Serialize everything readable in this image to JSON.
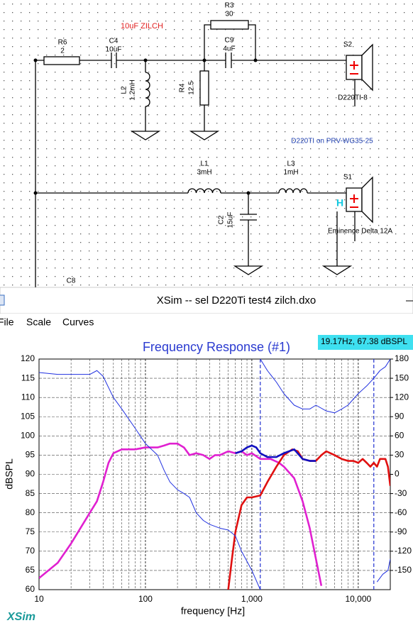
{
  "schematic": {
    "annotation": "10uF ZILCH",
    "components": [
      {
        "ref": "R6",
        "value": "2"
      },
      {
        "ref": "C4",
        "value": "10uF"
      },
      {
        "ref": "L2",
        "value": "1.2mH"
      },
      {
        "ref": "R4",
        "value": "12.5"
      },
      {
        "ref": "R3",
        "value": "30"
      },
      {
        "ref": "C9",
        "value": "4uF"
      },
      {
        "ref": "L1",
        "value": "3mH"
      },
      {
        "ref": "L3",
        "value": "1mH"
      },
      {
        "ref": "C2",
        "value": "15uF"
      },
      {
        "ref": "C8"
      }
    ],
    "speakers": [
      {
        "ref": "S2",
        "model": "D220TI-8"
      },
      {
        "ref": "S1",
        "model": "Eminence Delta 12A",
        "marker": "H"
      }
    ],
    "note": "D220TI on PRV-WG35-25"
  },
  "window": {
    "title": "XSim -- sel D220Ti test4 zilch.dxo",
    "menu": [
      "File",
      "Scale",
      "Curves"
    ],
    "cursor_readout": "19.17Hz, 67.38 dBSPL",
    "brand": "XSim"
  },
  "chart_data": {
    "type": "line",
    "title": "Frequency Response (#1)",
    "x_label": "frequency [Hz]",
    "y_label": "dBSPL",
    "x_scale": "log",
    "xlim": [
      10,
      20000
    ],
    "ylim": [
      60,
      120
    ],
    "y2lim": [
      -180,
      180
    ],
    "xticks": [
      10,
      100,
      {
        "value": 1000,
        "label": "1,000"
      },
      {
        "value": 10000,
        "label": "10,000"
      }
    ],
    "xgrid_minor": [
      20,
      30,
      40,
      50,
      60,
      70,
      80,
      90,
      200,
      300,
      400,
      500,
      600,
      700,
      800,
      900,
      2000,
      3000,
      4000,
      5000,
      6000,
      7000,
      8000,
      9000,
      20000
    ],
    "yticks": [
      60,
      65,
      70,
      75,
      80,
      85,
      90,
      95,
      100,
      105,
      110,
      115,
      120
    ],
    "y2ticks": [
      -150,
      -120,
      -90,
      -60,
      -30,
      0,
      30,
      60,
      90,
      120,
      150,
      180
    ],
    "grid": true,
    "cursors": [
      1200,
      14000
    ],
    "cursor_color": "#2030d0",
    "series": [
      {
        "color": "#e020d0",
        "x": [
          10,
          15,
          20,
          30,
          35,
          40,
          45,
          50,
          60,
          80,
          100,
          130,
          150,
          170,
          200,
          230,
          260,
          300,
          350,
          400,
          450,
          500,
          600,
          700,
          800,
          900,
          1000,
          1200,
          1500,
          1800,
          2000,
          2500,
          3000,
          3500,
          4000,
          4500
        ],
        "values": [
          63,
          67,
          72,
          80,
          83,
          88,
          93,
          95.5,
          96.5,
          96.5,
          97,
          97,
          97.5,
          98,
          98,
          97,
          95,
          95.5,
          95,
          94,
          95,
          95,
          96,
          95.5,
          96,
          95,
          95.5,
          94,
          94,
          93,
          92,
          89,
          83,
          76,
          68,
          61
        ]
      },
      {
        "color": "#e01010",
        "x": [
          600,
          650,
          700,
          800,
          900,
          1000,
          1200,
          1400,
          1700,
          2000,
          2400,
          2700,
          3000,
          3500,
          4000,
          4500,
          5000,
          6000,
          7000,
          8000,
          9000,
          10000,
          11000,
          12000,
          13000,
          14000,
          15000,
          16000,
          18000,
          19000,
          20000
        ],
        "values": [
          60,
          68,
          75,
          82,
          84,
          84,
          84.5,
          88,
          92,
          95,
          96.5,
          96,
          94,
          93.5,
          93.5,
          95,
          96,
          95,
          94,
          93.5,
          93.5,
          93,
          94,
          93,
          92,
          93,
          92,
          94,
          94,
          92,
          87
        ]
      },
      {
        "color": "#1010c0",
        "x": [
          700,
          800,
          900,
          1000,
          1100,
          1200,
          1400,
          1700,
          2000,
          2500,
          3000,
          3500,
          4000
        ],
        "values": [
          95.5,
          96,
          97,
          97.5,
          97,
          95.5,
          94.5,
          94.5,
          95.5,
          96.5,
          94,
          93.5,
          93.5
        ]
      },
      {
        "color": "#2030e0",
        "axis": "y2",
        "x": [
          10,
          15,
          20,
          30,
          35,
          40,
          50,
          60,
          80,
          100,
          130,
          150,
          170,
          200,
          230,
          260,
          300,
          350,
          400,
          500,
          600,
          700,
          800,
          1000,
          1200
        ],
        "values": [
          159,
          156,
          156,
          156,
          162,
          153,
          120,
          102,
          72,
          48,
          30,
          6,
          -12,
          -24,
          -30,
          -36,
          -60,
          -72,
          -78,
          -84,
          -87,
          -96,
          -120,
          -150,
          -180
        ]
      },
      {
        "color": "#2030e0",
        "axis": "y2",
        "x": [
          1200,
          1400,
          1700,
          2000,
          2500,
          3000,
          3500,
          4000,
          5000,
          6000,
          7000,
          8000,
          10000,
          12000,
          14000,
          16000,
          18000,
          20000
        ],
        "values": [
          180,
          162,
          144,
          126,
          108,
          102,
          102,
          108,
          99,
          96,
          102,
          108,
          126,
          138,
          150,
          162,
          168,
          180
        ]
      },
      {
        "color": "#2030e0",
        "axis": "y2",
        "x": [
          15000,
          17000,
          19000,
          20000
        ],
        "values": [
          -168,
          -156,
          -150,
          -132
        ]
      }
    ]
  }
}
